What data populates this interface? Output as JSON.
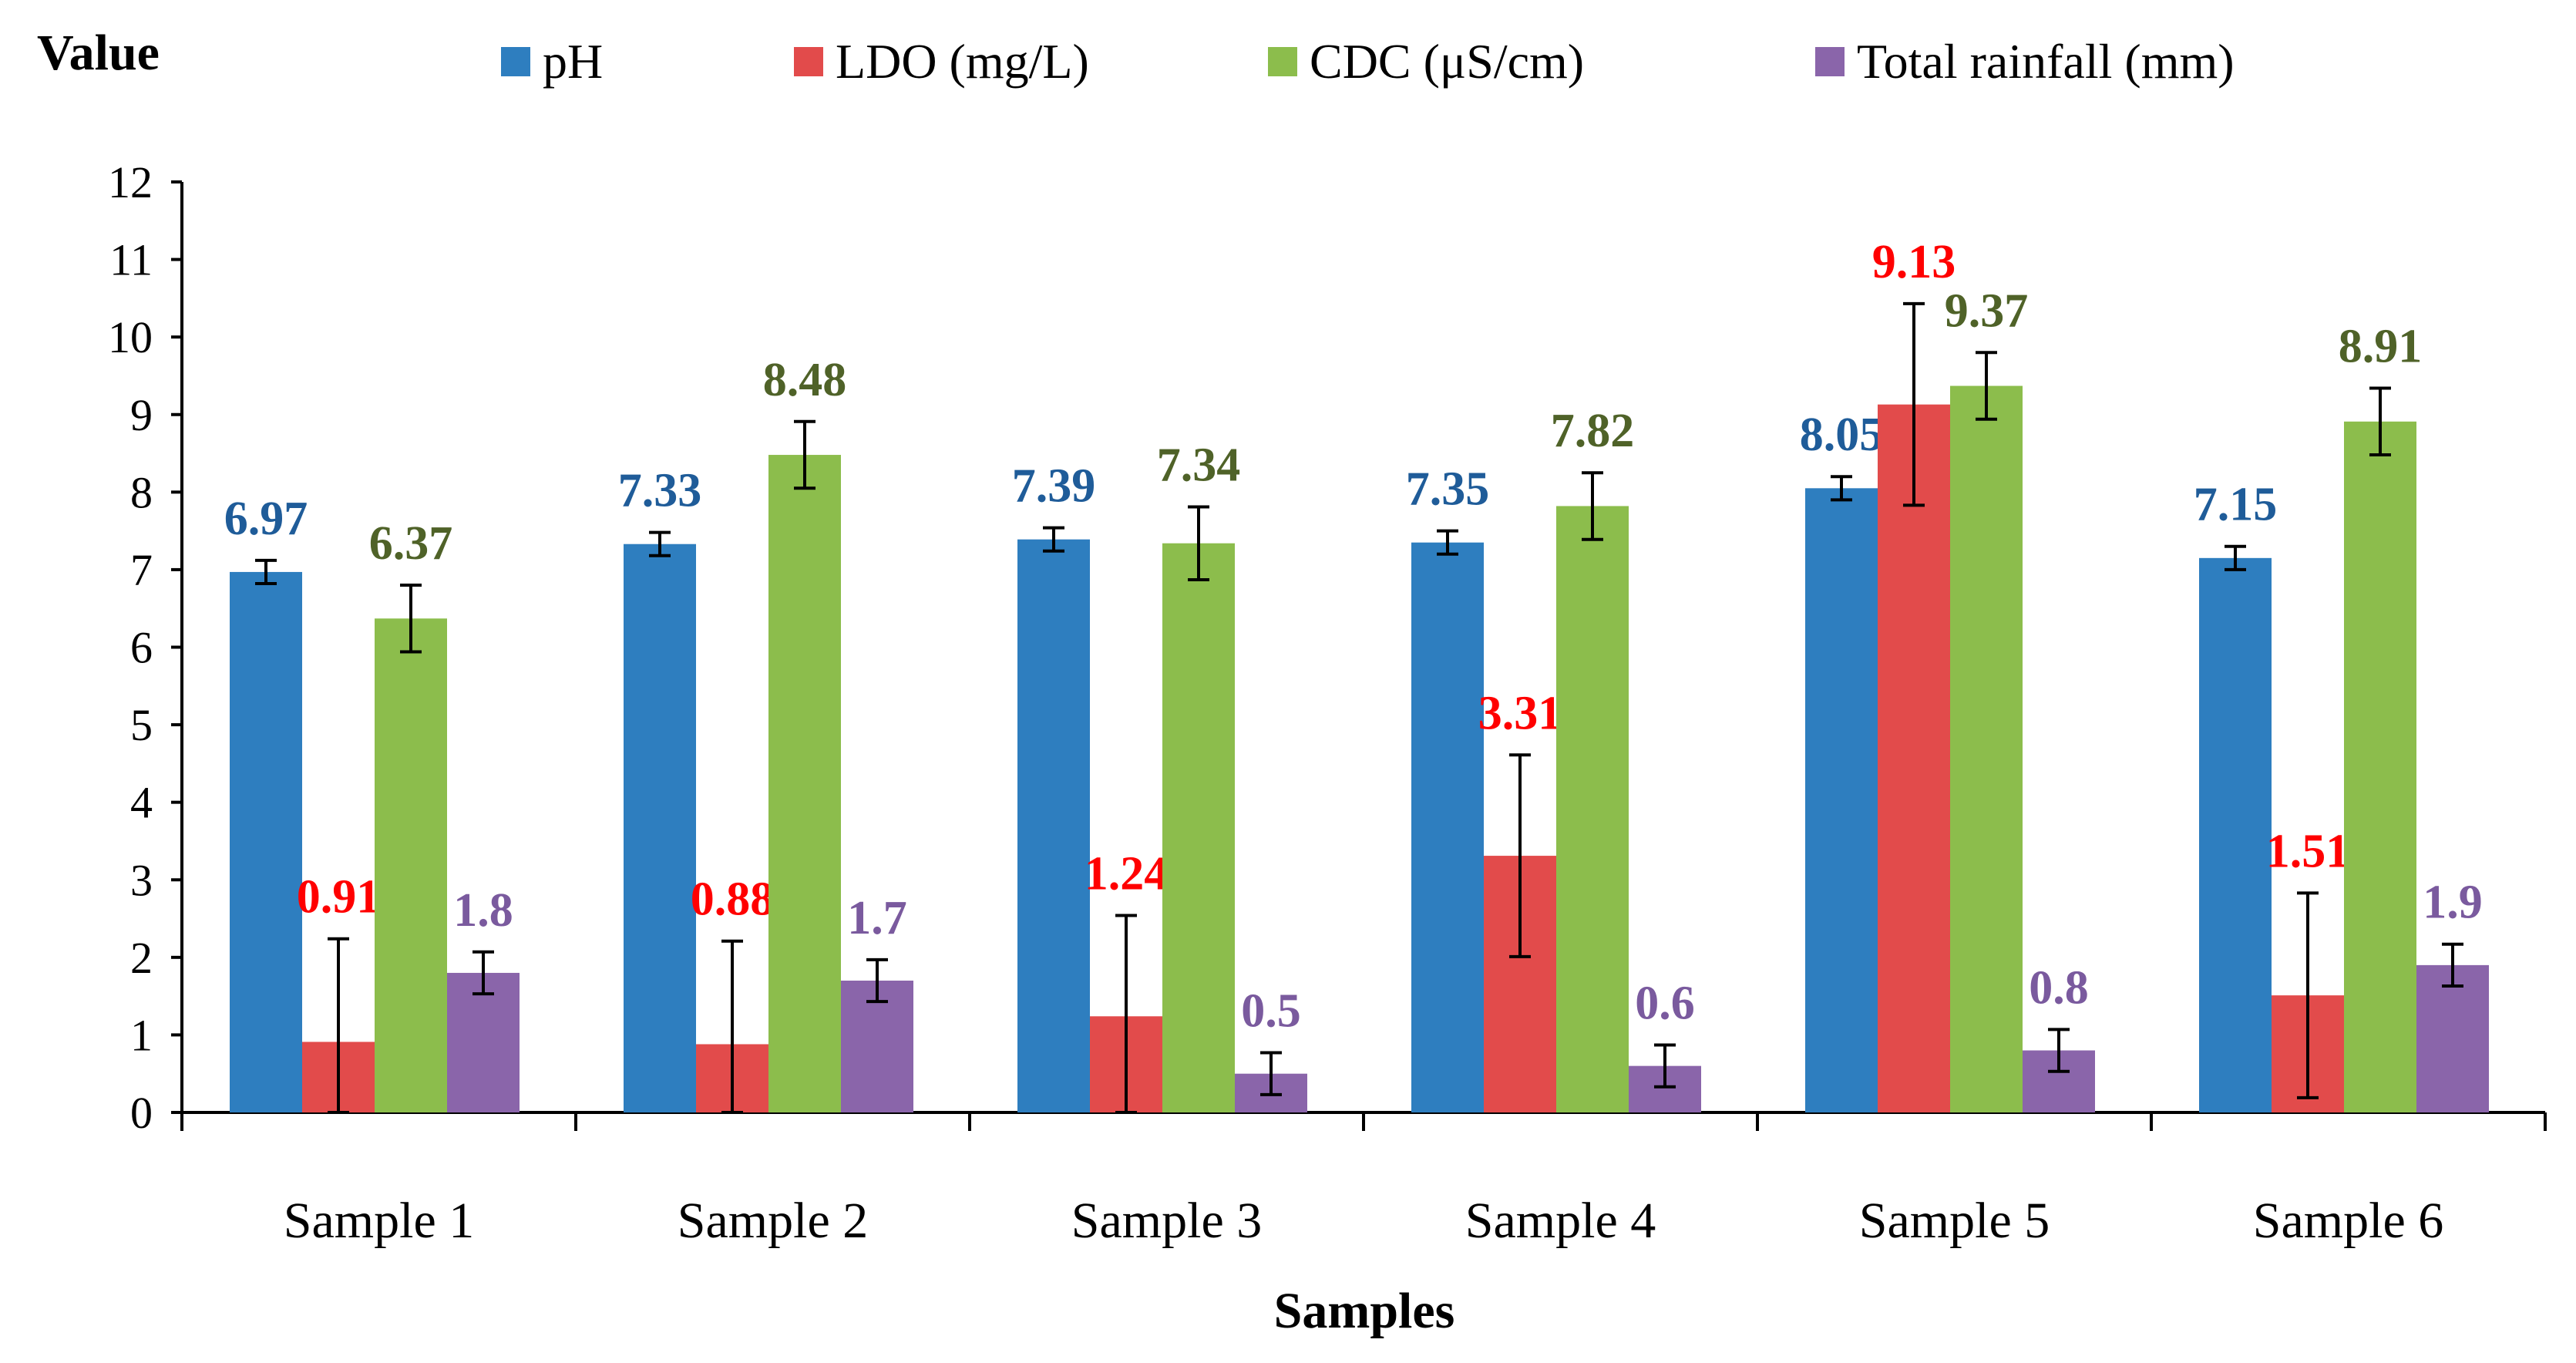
{
  "chart_data": {
    "type": "bar",
    "title": "",
    "ylabel": "Value",
    "xlabel": "Samples",
    "ylim": [
      0,
      12
    ],
    "yticks": [
      0,
      1,
      2,
      3,
      4,
      5,
      6,
      7,
      8,
      9,
      10,
      11,
      12
    ],
    "grid": false,
    "legend": "top",
    "categories": [
      "Sample 1",
      "Sample 2",
      "Sample 3",
      "Sample 4",
      "Sample 5",
      "Sample 6"
    ],
    "series": [
      {
        "name": "pH",
        "color": "#2e7ebf",
        "label_color": "#1f5c99",
        "values": [
          6.97,
          7.33,
          7.39,
          7.35,
          8.05,
          7.15
        ],
        "errors": [
          0.15,
          0.15,
          0.15,
          0.15,
          0.15,
          0.15
        ],
        "labels": [
          "6.97",
          "7.33",
          "7.39",
          "7.35",
          "8.05",
          "7.15"
        ]
      },
      {
        "name": "LDO (mg/L)",
        "color": "#e24b4b",
        "label_color": "#ff0000",
        "values": [
          0.91,
          0.88,
          1.24,
          3.31,
          9.13,
          1.51
        ],
        "errors": [
          1.33,
          1.33,
          1.3,
          1.3,
          1.3,
          1.32
        ],
        "labels": [
          "0.91",
          "0.88",
          "1.24",
          "3.31",
          "9.13",
          "1.51"
        ]
      },
      {
        "name": "CDC (μS/cm)",
        "color": "#8cbd4c",
        "label_color": "#4f6228",
        "values": [
          6.37,
          8.48,
          7.34,
          7.82,
          9.37,
          8.91
        ],
        "errors": [
          0.43,
          0.43,
          0.47,
          0.43,
          0.43,
          0.43
        ],
        "labels": [
          "6.37",
          "8.48",
          "7.34",
          "7.82",
          "9.37",
          "8.91"
        ]
      },
      {
        "name": "Total rainfall (mm)",
        "color": "#8a65aa",
        "label_color": "#7a5a9e",
        "values": [
          1.8,
          1.7,
          0.5,
          0.6,
          0.8,
          1.9
        ],
        "errors": [
          0.27,
          0.27,
          0.27,
          0.27,
          0.27,
          0.27
        ],
        "labels": [
          "1.8",
          "1.7",
          "0.5",
          "0.6",
          "0.8",
          "1.9"
        ]
      }
    ]
  }
}
